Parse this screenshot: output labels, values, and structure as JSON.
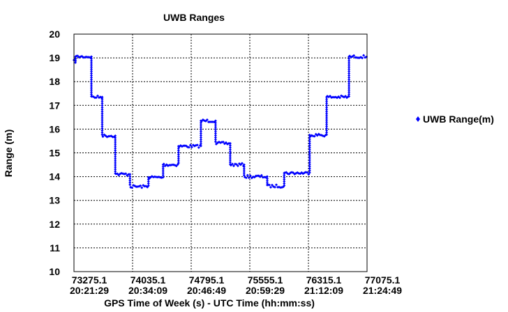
{
  "chart_data": {
    "type": "scatter",
    "title": "UWB Ranges",
    "xlabel": "GPS Time of Week (s) - UTC Time (hh:mm:ss)",
    "ylabel": "Range (m)",
    "xlim": [
      73275.1,
      77075.1
    ],
    "ylim": [
      10,
      20
    ],
    "grid": true,
    "legend_position": "right",
    "y_ticks": [
      "10",
      "11",
      "12",
      "13",
      "14",
      "15",
      "16",
      "17",
      "18",
      "19",
      "20"
    ],
    "x_ticks": [
      {
        "value": 73275.1,
        "gps": "73275.1",
        "utc": "20:21:29"
      },
      {
        "value": 74035.1,
        "gps": "74035.1",
        "utc": "20:34:09"
      },
      {
        "value": 74795.1,
        "gps": "74795.1",
        "utc": "20:46:49"
      },
      {
        "value": 75555.1,
        "gps": "75555.1",
        "utc": "20:59:29"
      },
      {
        "value": 76315.1,
        "gps": "76315.1",
        "utc": "21:12:09"
      },
      {
        "value": 77075.1,
        "gps": "77075.1",
        "utc": "21:24:49"
      }
    ],
    "series": [
      {
        "name": "UWB Range(m)",
        "color": "#0000ff",
        "marker": "diamond",
        "segments": [
          {
            "x_start": 73275.1,
            "x_end": 73305,
            "y": 18.85
          },
          {
            "x_start": 73305,
            "x_end": 73500,
            "y": 19.05
          },
          {
            "x_start": 73510,
            "x_end": 73640,
            "y": 17.35
          },
          {
            "x_start": 73650,
            "x_end": 73810,
            "y": 15.72
          },
          {
            "x_start": 73820,
            "x_end": 74000,
            "y": 14.1
          },
          {
            "x_start": 74010,
            "x_end": 74240,
            "y": 13.58
          },
          {
            "x_start": 74250,
            "x_end": 74430,
            "y": 13.97
          },
          {
            "x_start": 74440,
            "x_end": 74630,
            "y": 14.5
          },
          {
            "x_start": 74640,
            "x_end": 74920,
            "y": 15.28
          },
          {
            "x_start": 74930,
            "x_end": 75110,
            "y": 16.35
          },
          {
            "x_start": 75120,
            "x_end": 75300,
            "y": 15.4
          },
          {
            "x_start": 75310,
            "x_end": 75480,
            "y": 14.5
          },
          {
            "x_start": 75490,
            "x_end": 75780,
            "y": 14.0
          },
          {
            "x_start": 75790,
            "x_end": 76000,
            "y": 13.6
          },
          {
            "x_start": 76010,
            "x_end": 76330,
            "y": 14.15
          },
          {
            "x_start": 76340,
            "x_end": 76550,
            "y": 15.75
          },
          {
            "x_start": 76560,
            "x_end": 76840,
            "y": 17.35
          },
          {
            "x_start": 76850,
            "x_end": 77075.1,
            "y": 19.05
          }
        ]
      }
    ]
  }
}
